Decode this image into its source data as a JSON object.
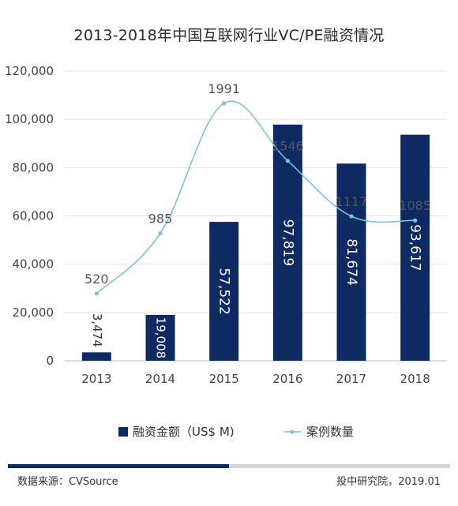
{
  "title": "2013-2018年中国互联网行业VC/PE融资情况",
  "chart_data": {
    "type": "bar",
    "categories": [
      "2013",
      "2014",
      "2015",
      "2016",
      "2017",
      "2018"
    ],
    "series": [
      {
        "name": "融资金额（US$ M)",
        "type": "bar",
        "axis": "left",
        "values": [
          3474,
          19008,
          57522,
          97819,
          81674,
          93617
        ],
        "labels": [
          "3,474",
          "19,008",
          "57,522",
          "97,819",
          "81,674",
          "93,617"
        ],
        "color": "#0d2a63"
      },
      {
        "name": "案例数量",
        "type": "line",
        "axis": "right",
        "smooth": true,
        "values": [
          520,
          985,
          1991,
          1546,
          1117,
          1085
        ],
        "labels": [
          "520",
          "985",
          "1991",
          "1546",
          "1117",
          "1085"
        ],
        "color": "#7cc3d9"
      }
    ],
    "y_ticks": [
      "0",
      "20,000",
      "40,000",
      "60,000",
      "80,000",
      "100,000",
      "120,000"
    ],
    "ylim": [
      0,
      120000
    ],
    "grid": true,
    "legend": "bottom"
  },
  "footer": {
    "source": "数据来源：CVSource",
    "credit": "投中研究院，2019.01"
  },
  "colors": {
    "bar": "#0d2a63",
    "line": "#7cc3d9",
    "grid": "#e3e3e3",
    "footer_dark": "#0d2a63",
    "footer_light": "#d5d5d5"
  }
}
